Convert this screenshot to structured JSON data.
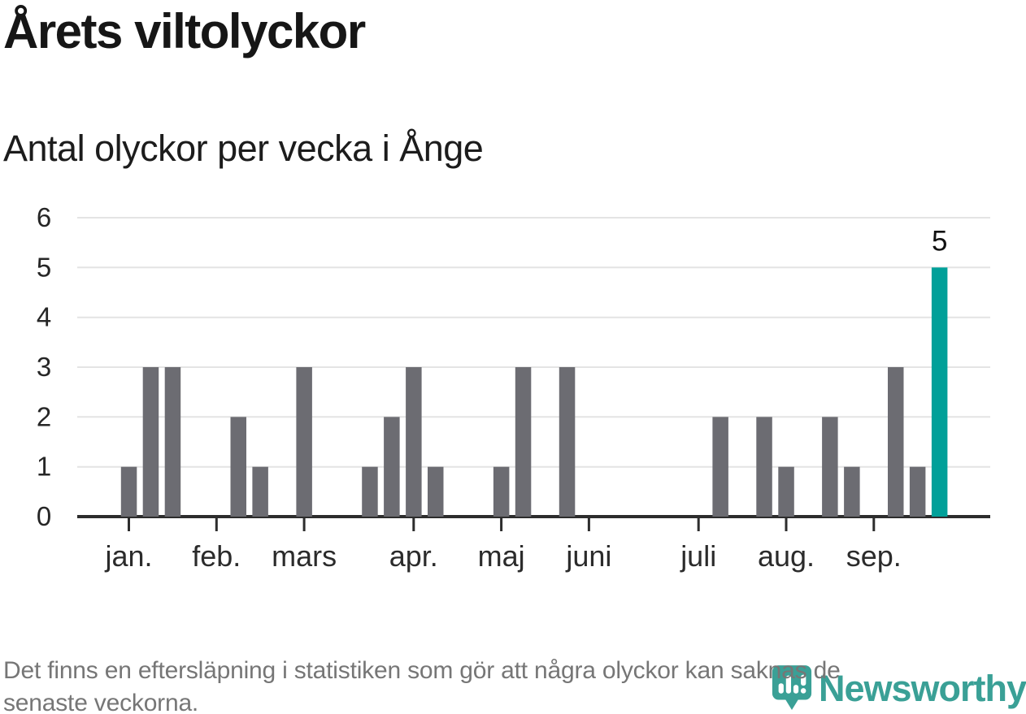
{
  "chart_data": {
    "type": "bar",
    "title": "Årets viltolyckor",
    "subtitle": "Antal olyckor per vecka i Ånge",
    "x_unit": "vecka (ISO-veckonummer)",
    "weeks": [
      1,
      2,
      3,
      4,
      5,
      6,
      7,
      8,
      9,
      10,
      11,
      12,
      13,
      14,
      15,
      16,
      17,
      18,
      19,
      20,
      21,
      22,
      23,
      24,
      25,
      26,
      27,
      28,
      29,
      30,
      31,
      32,
      33,
      34,
      35,
      36,
      37,
      38
    ],
    "values": [
      1,
      3,
      3,
      0,
      0,
      2,
      1,
      0,
      3,
      0,
      0,
      1,
      2,
      3,
      1,
      0,
      0,
      1,
      3,
      0,
      3,
      0,
      0,
      0,
      0,
      0,
      0,
      2,
      0,
      2,
      1,
      0,
      2,
      1,
      0,
      3,
      1,
      5
    ],
    "highlight_week": 38,
    "highlight_value_label": "5",
    "ylim": [
      0,
      6
    ],
    "yticks": [
      0,
      1,
      2,
      3,
      4,
      5,
      6
    ],
    "xticks": [
      {
        "week": 1,
        "label": "jan."
      },
      {
        "week": 5,
        "label": "feb."
      },
      {
        "week": 9,
        "label": "mars"
      },
      {
        "week": 14,
        "label": "apr."
      },
      {
        "week": 18,
        "label": "maj"
      },
      {
        "week": 22,
        "label": "juni"
      },
      {
        "week": 27,
        "label": "juli"
      },
      {
        "week": 31,
        "label": "aug."
      },
      {
        "week": 35,
        "label": "sep."
      }
    ],
    "grid": "horizontal",
    "legend": "none",
    "colors": {
      "bar": "#6c6c72",
      "highlight": "#00a099",
      "axis": "#2d2d2d",
      "grid": "#e4e4e4",
      "y_label": "#262626",
      "x_label": "#2b2b2b",
      "value_label": "#111111"
    }
  },
  "footer": {
    "lines": [
      "Det finns en eftersläpning i statistiken som gör att några olyckor kan saknas de",
      "senaste veckorna."
    ]
  },
  "logo": {
    "brand": "Newsworthy",
    "color": "#3aa096",
    "icon": "bar-chart-speech-bubble-pin"
  }
}
